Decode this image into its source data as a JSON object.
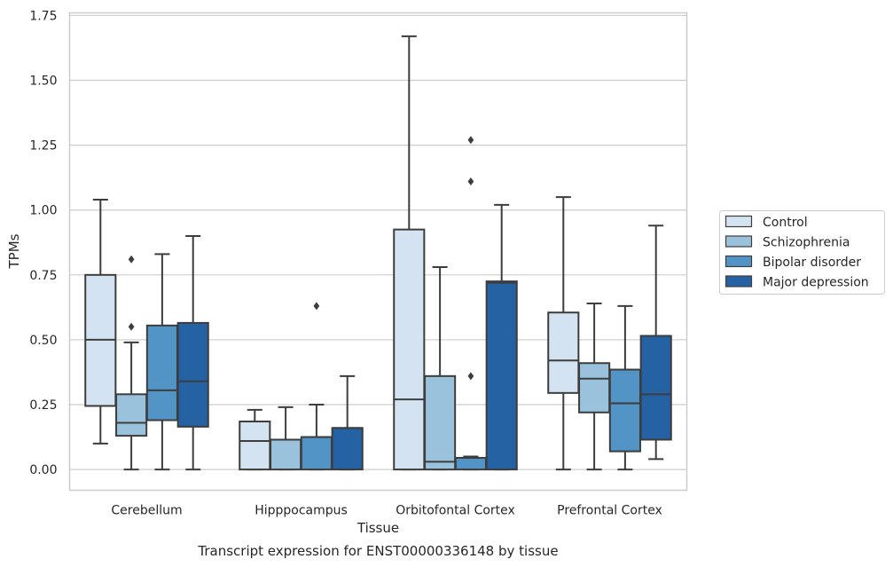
{
  "chart_data": {
    "type": "box",
    "title": "",
    "caption": "Transcript expression for ENST00000336148 by tissue",
    "xlabel": "Tissue",
    "ylabel": "TPMs",
    "ylim": [
      -0.08,
      1.76
    ],
    "yticks": [
      0.0,
      0.25,
      0.5,
      0.75,
      1.0,
      1.25,
      1.5,
      1.75
    ],
    "ytick_labels": [
      "0.00",
      "0.25",
      "0.50",
      "0.75",
      "1.00",
      "1.25",
      "1.50",
      "1.75"
    ],
    "grid": "horizontal",
    "legend_position": "right-outside",
    "categories": [
      "Cerebellum",
      "Hipppocampus",
      "Orbitofontal Cortex",
      "Prefrontal Cortex"
    ],
    "series": [
      {
        "name": "Control",
        "color": "#d4e3f2",
        "boxes": [
          {
            "whisker_low": 0.1,
            "q1": 0.245,
            "median": 0.5,
            "q3": 0.75,
            "whisker_high": 1.04,
            "outliers": []
          },
          {
            "whisker_low": 0.0,
            "q1": 0.0,
            "median": 0.11,
            "q3": 0.185,
            "whisker_high": 0.23,
            "outliers": []
          },
          {
            "whisker_low": 0.0,
            "q1": 0.0,
            "median": 0.27,
            "q3": 0.925,
            "whisker_high": 1.67,
            "outliers": []
          },
          {
            "whisker_low": 0.0,
            "q1": 0.295,
            "median": 0.42,
            "q3": 0.605,
            "whisker_high": 1.05,
            "outliers": []
          }
        ]
      },
      {
        "name": "Schizophrenia",
        "color": "#9bc2dc",
        "boxes": [
          {
            "whisker_low": 0.0,
            "q1": 0.13,
            "median": 0.18,
            "q3": 0.29,
            "whisker_high": 0.49,
            "outliers": [
              0.55,
              0.81
            ]
          },
          {
            "whisker_low": 0.0,
            "q1": 0.0,
            "median": 0.115,
            "q3": 0.115,
            "whisker_high": 0.24,
            "outliers": []
          },
          {
            "whisker_low": 0.0,
            "q1": 0.0,
            "median": 0.03,
            "q3": 0.36,
            "whisker_high": 0.78,
            "outliers": []
          },
          {
            "whisker_low": 0.0,
            "q1": 0.22,
            "median": 0.35,
            "q3": 0.41,
            "whisker_high": 0.64,
            "outliers": []
          }
        ]
      },
      {
        "name": "Bipolar disorder",
        "color": "#5394c6",
        "boxes": [
          {
            "whisker_low": 0.0,
            "q1": 0.19,
            "median": 0.305,
            "q3": 0.555,
            "whisker_high": 0.83,
            "outliers": []
          },
          {
            "whisker_low": 0.0,
            "q1": 0.0,
            "median": 0.125,
            "q3": 0.125,
            "whisker_high": 0.25,
            "outliers": [
              0.63
            ]
          },
          {
            "whisker_low": 0.0,
            "q1": 0.0,
            "median": 0.045,
            "q3": 0.045,
            "whisker_high": 0.05,
            "outliers": [
              0.36,
              1.11,
              1.27
            ]
          },
          {
            "whisker_low": 0.0,
            "q1": 0.07,
            "median": 0.255,
            "q3": 0.385,
            "whisker_high": 0.63,
            "outliers": []
          }
        ]
      },
      {
        "name": "Major depression",
        "color": "#2462a4",
        "boxes": [
          {
            "whisker_low": 0.0,
            "q1": 0.165,
            "median": 0.34,
            "q3": 0.565,
            "whisker_high": 0.9,
            "outliers": []
          },
          {
            "whisker_low": 0.0,
            "q1": 0.0,
            "median": 0.16,
            "q3": 0.16,
            "whisker_high": 0.36,
            "outliers": []
          },
          {
            "whisker_low": 0.0,
            "q1": 0.0,
            "median": 0.72,
            "q3": 0.725,
            "whisker_high": 1.02,
            "outliers": []
          },
          {
            "whisker_low": 0.04,
            "q1": 0.115,
            "median": 0.29,
            "q3": 0.515,
            "whisker_high": 0.94,
            "outliers": []
          }
        ]
      }
    ]
  }
}
